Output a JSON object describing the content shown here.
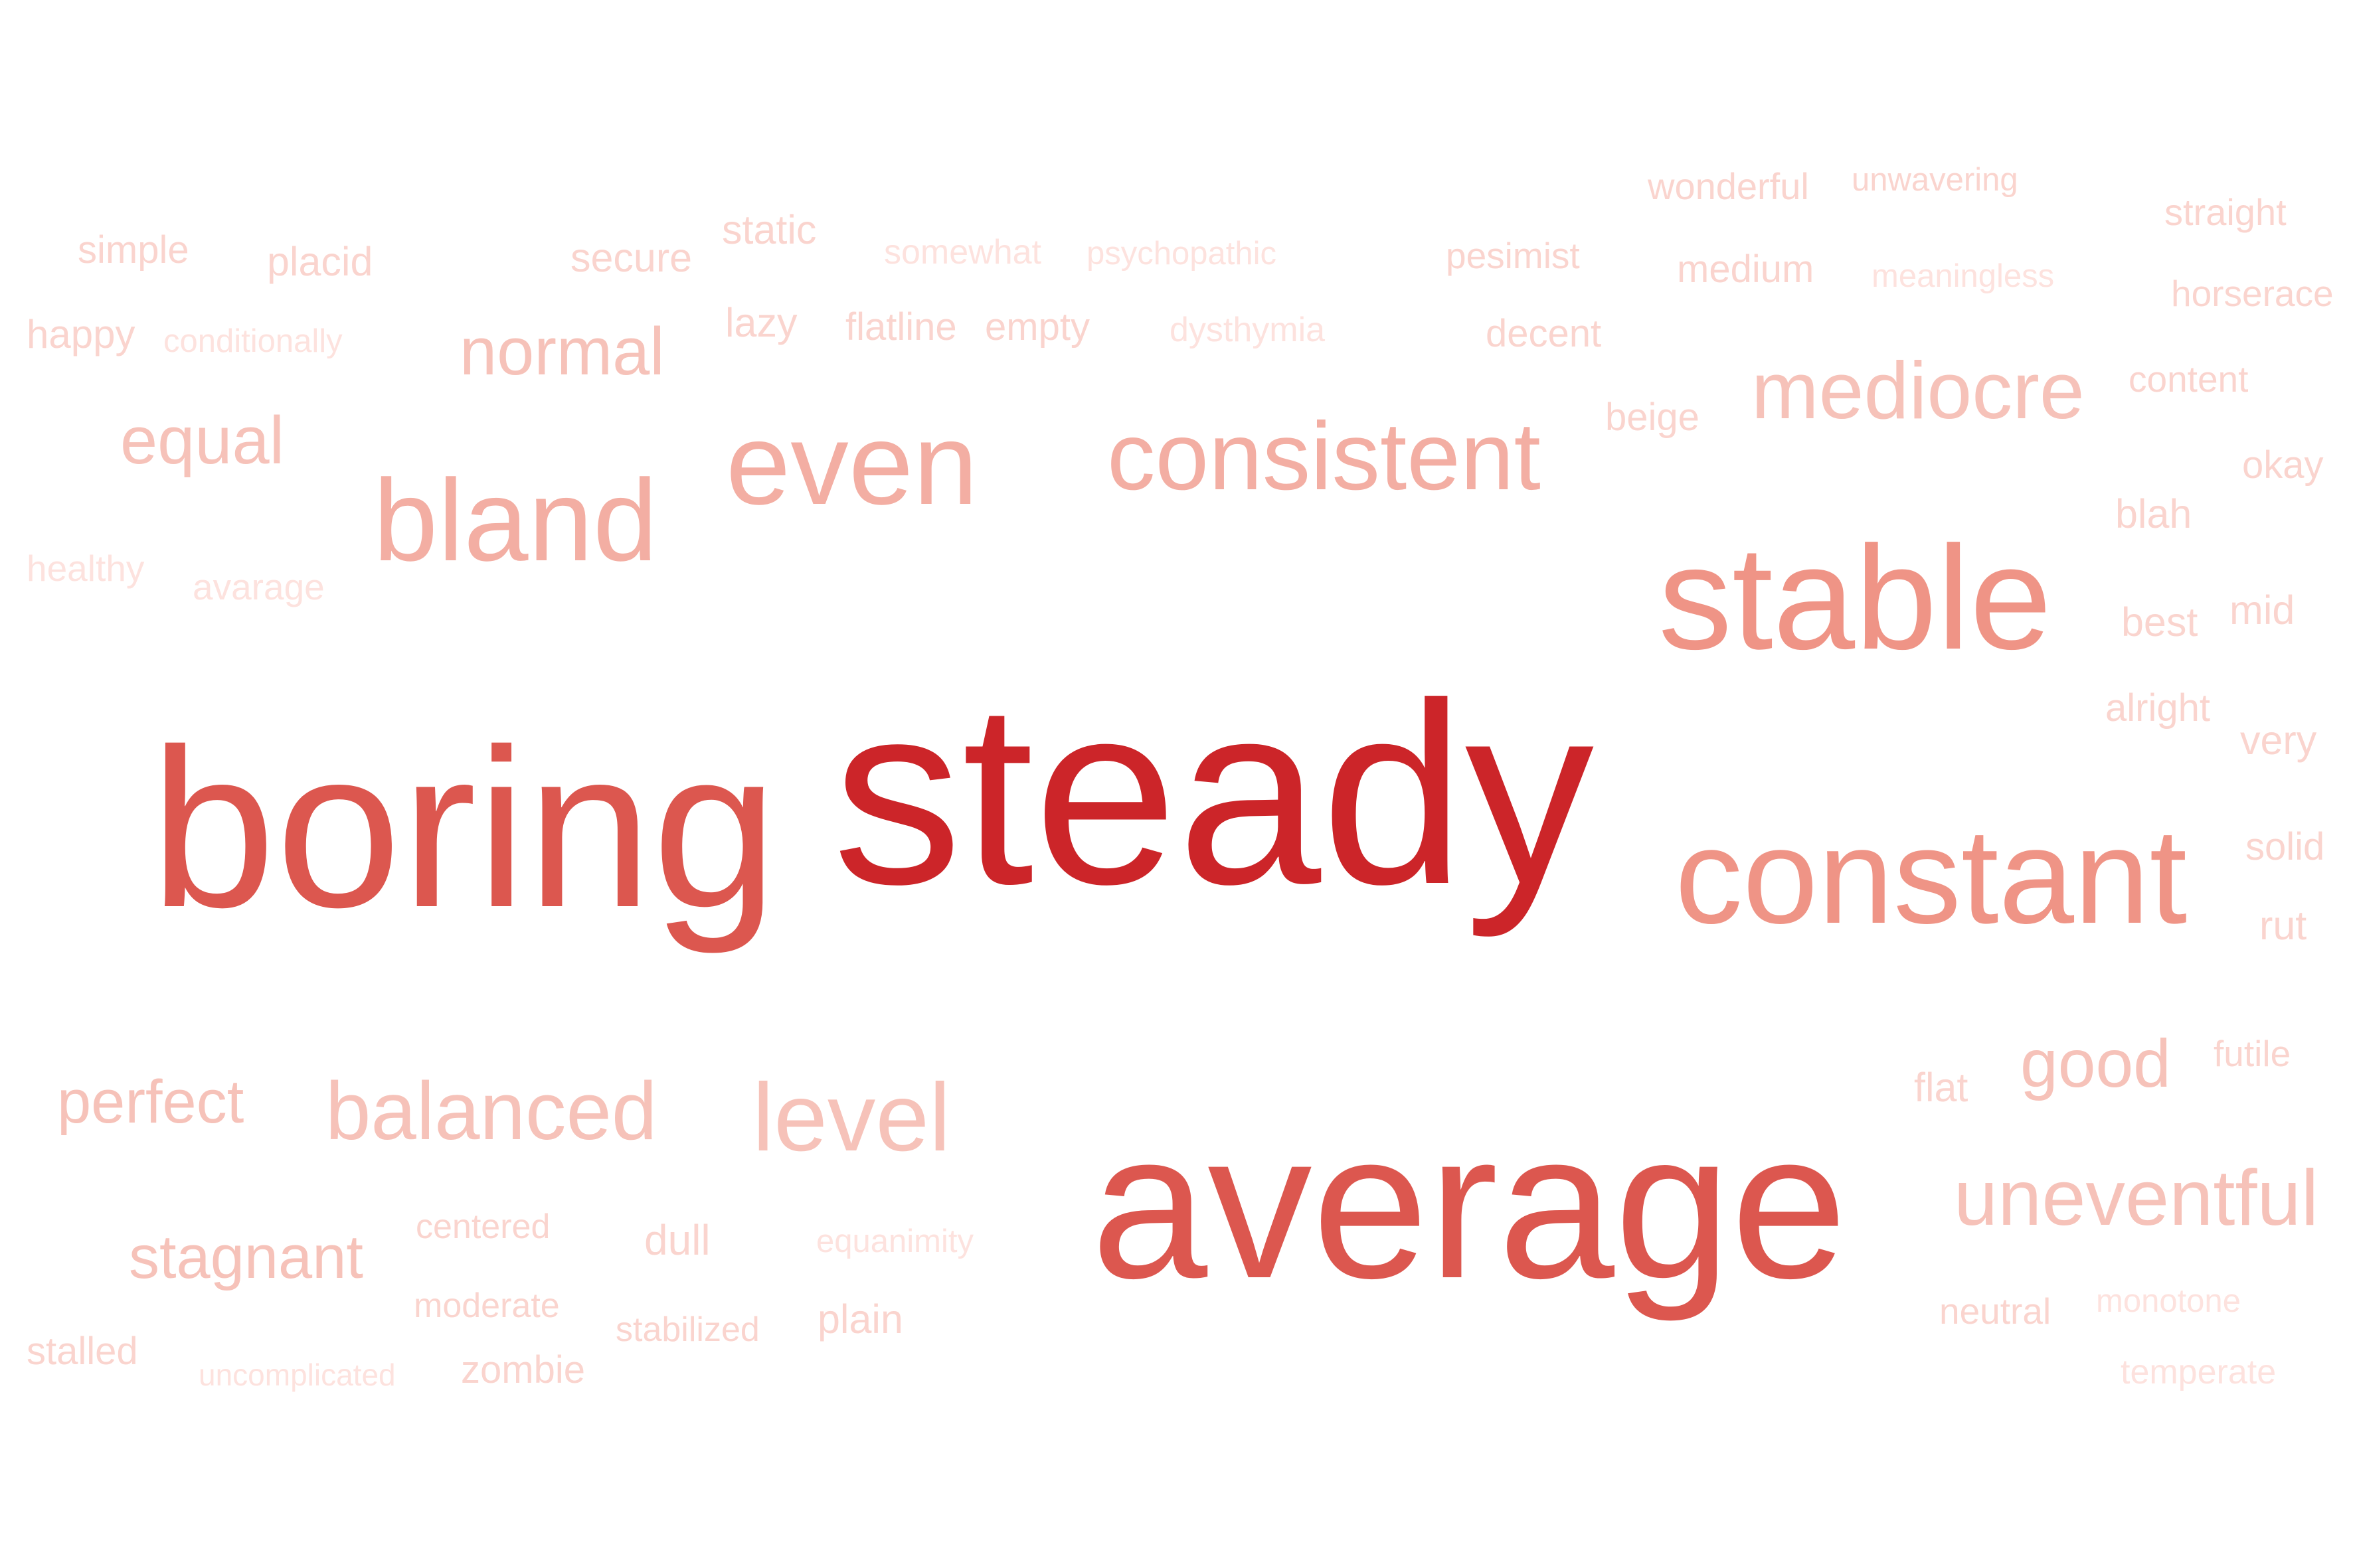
{
  "palette": {
    "t1": "#cc2529",
    "t2": "#dc574f",
    "t3": "#ef9486",
    "t4": "#f3aea3",
    "t5": "#f6c2b9",
    "t6": "#fad4ce",
    "t7": "#fde2de"
  },
  "words": [
    {
      "text": "steady",
      "tier": "t1"
    },
    {
      "text": "boring",
      "tier": "t2"
    },
    {
      "text": "average",
      "tier": "t2"
    },
    {
      "text": "stable",
      "tier": "t3"
    },
    {
      "text": "constant",
      "tier": "t3"
    },
    {
      "text": "bland",
      "tier": "t4"
    },
    {
      "text": "even",
      "tier": "t4"
    },
    {
      "text": "consistent",
      "tier": "t4"
    },
    {
      "text": "mediocre",
      "tier": "t5"
    },
    {
      "text": "normal",
      "tier": "t5"
    },
    {
      "text": "balanced",
      "tier": "t5"
    },
    {
      "text": "level",
      "tier": "t5"
    },
    {
      "text": "uneventful",
      "tier": "t5"
    },
    {
      "text": "equal",
      "tier": "t5"
    },
    {
      "text": "perfect",
      "tier": "t5"
    },
    {
      "text": "stagnant",
      "tier": "t5"
    },
    {
      "text": "good",
      "tier": "t5"
    },
    {
      "text": "wonderful",
      "tier": "t6"
    },
    {
      "text": "unwavering",
      "tier": "t6"
    },
    {
      "text": "straight",
      "tier": "t6"
    },
    {
      "text": "simple",
      "tier": "t6"
    },
    {
      "text": "placid",
      "tier": "t6"
    },
    {
      "text": "secure",
      "tier": "t6"
    },
    {
      "text": "static",
      "tier": "t6"
    },
    {
      "text": "somewhat",
      "tier": "t7"
    },
    {
      "text": "psychopathic",
      "tier": "t7"
    },
    {
      "text": "pesimist",
      "tier": "t6"
    },
    {
      "text": "medium",
      "tier": "t6"
    },
    {
      "text": "meaningless",
      "tier": "t7"
    },
    {
      "text": "horserace",
      "tier": "t6"
    },
    {
      "text": "happy",
      "tier": "t6"
    },
    {
      "text": "conditionally",
      "tier": "t7"
    },
    {
      "text": "lazy",
      "tier": "t6"
    },
    {
      "text": "flatline",
      "tier": "t6"
    },
    {
      "text": "empty",
      "tier": "t6"
    },
    {
      "text": "dysthymia",
      "tier": "t7"
    },
    {
      "text": "decent",
      "tier": "t6"
    },
    {
      "text": "content",
      "tier": "t6"
    },
    {
      "text": "beige",
      "tier": "t6"
    },
    {
      "text": "okay",
      "tier": "t6"
    },
    {
      "text": "blah",
      "tier": "t6"
    },
    {
      "text": "healthy",
      "tier": "t7"
    },
    {
      "text": "avarage",
      "tier": "t7"
    },
    {
      "text": "best",
      "tier": "t6"
    },
    {
      "text": "mid",
      "tier": "t6"
    },
    {
      "text": "alright",
      "tier": "t6"
    },
    {
      "text": "very",
      "tier": "t6"
    },
    {
      "text": "solid",
      "tier": "t6"
    },
    {
      "text": "rut",
      "tier": "t6"
    },
    {
      "text": "futile",
      "tier": "t6"
    },
    {
      "text": "flat",
      "tier": "t6"
    },
    {
      "text": "centered",
      "tier": "t6"
    },
    {
      "text": "dull",
      "tier": "t6"
    },
    {
      "text": "equanimity",
      "tier": "t7"
    },
    {
      "text": "moderate",
      "tier": "t6"
    },
    {
      "text": "stabilized",
      "tier": "t6"
    },
    {
      "text": "plain",
      "tier": "t6"
    },
    {
      "text": "neutral",
      "tier": "t6"
    },
    {
      "text": "monotone",
      "tier": "t7"
    },
    {
      "text": "stalled",
      "tier": "t6"
    },
    {
      "text": "uncomplicated",
      "tier": "t7"
    },
    {
      "text": "zombie",
      "tier": "t6"
    },
    {
      "text": "temperate",
      "tier": "t7"
    }
  ]
}
